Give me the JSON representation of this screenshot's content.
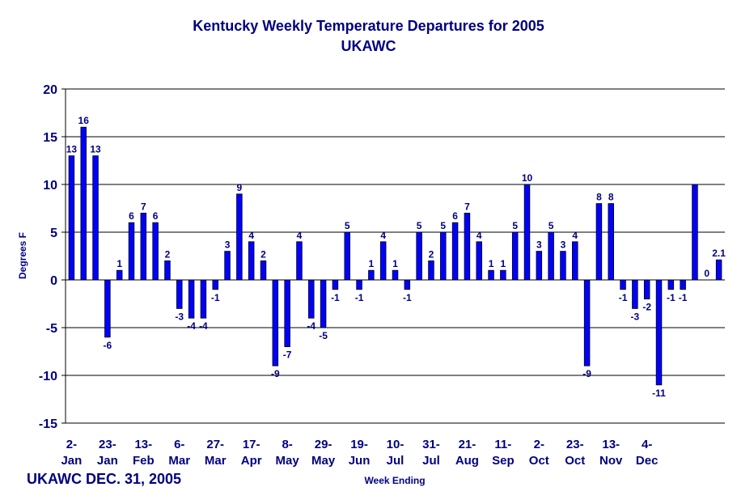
{
  "chart_data": {
    "type": "bar",
    "title": "Kentucky Weekly Temperature Departures for 2005",
    "subtitle": "UKAWC",
    "xlabel": "Week Ending",
    "ylabel": "Degrees F",
    "ylim": [
      -15,
      20
    ],
    "yticks": [
      20,
      15,
      10,
      5,
      0,
      -5,
      -10,
      -15
    ],
    "grid": true,
    "bar_color": "#0000FF",
    "text_color": "#000080",
    "series": [
      {
        "values": [
          13,
          16,
          13,
          -6,
          1,
          6,
          7,
          6,
          2,
          -3,
          -4,
          -4,
          -1,
          3,
          9,
          4,
          2,
          -9,
          -7,
          4,
          -4,
          -5,
          -1,
          5,
          -1,
          1,
          4,
          1,
          -1,
          5,
          2,
          5,
          6,
          7,
          4,
          1,
          1,
          5,
          10,
          3,
          5,
          3,
          4,
          -9,
          8,
          8,
          -1,
          -3,
          -2,
          -11,
          -1,
          -1,
          10,
          0,
          2.1
        ],
        "labels": [
          "13",
          "16",
          "13",
          "-6",
          "1",
          "6",
          "7",
          "6",
          "2",
          "-3",
          "-4",
          "-4",
          "-1",
          "3",
          "9",
          "4",
          "2",
          "-9",
          "-7",
          "4",
          "-4",
          "-5",
          "-1",
          "5",
          "-1",
          "1",
          "4",
          "1",
          "-1",
          "5",
          "2",
          "5",
          "6",
          "7",
          "4",
          "1",
          "1",
          "5",
          "10",
          "3",
          "5",
          "3",
          "4",
          "-9",
          "8",
          "8",
          "-1",
          "-3",
          "-2",
          "-11",
          "-1",
          "-1",
          "",
          "0",
          "2.1"
        ]
      }
    ],
    "x_tick_labels": [
      {
        "week": 0,
        "line1": "2-",
        "line2": "Jan"
      },
      {
        "week": 3,
        "line1": "23-",
        "line2": "Jan"
      },
      {
        "week": 6,
        "line1": "13-",
        "line2": "Feb"
      },
      {
        "week": 9,
        "line1": "6-",
        "line2": "Mar"
      },
      {
        "week": 12,
        "line1": "27-",
        "line2": "Mar"
      },
      {
        "week": 15,
        "line1": "17-",
        "line2": "Apr"
      },
      {
        "week": 18,
        "line1": "8-",
        "line2": "May"
      },
      {
        "week": 21,
        "line1": "29-",
        "line2": "May"
      },
      {
        "week": 24,
        "line1": "19-",
        "line2": "Jun"
      },
      {
        "week": 27,
        "line1": "10-",
        "line2": "Jul"
      },
      {
        "week": 30,
        "line1": "31-",
        "line2": "Jul"
      },
      {
        "week": 33,
        "line1": "21-",
        "line2": "Aug"
      },
      {
        "week": 36,
        "line1": "11-",
        "line2": "Sep"
      },
      {
        "week": 39,
        "line1": "2-",
        "line2": "Oct"
      },
      {
        "week": 42,
        "line1": "23-",
        "line2": "Oct"
      },
      {
        "week": 45,
        "line1": "13-",
        "line2": "Nov"
      },
      {
        "week": 48,
        "line1": "4-",
        "line2": "Dec"
      }
    ]
  },
  "footer": {
    "note": "UKAWC DEC. 31, 2005"
  }
}
